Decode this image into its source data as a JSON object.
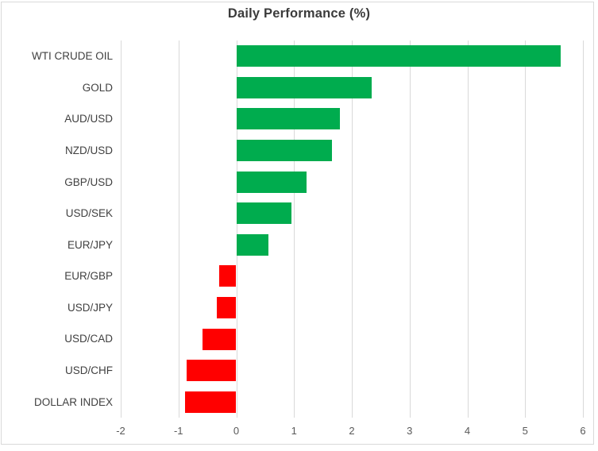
{
  "chart_data": {
    "type": "bar",
    "orientation": "horizontal",
    "title": "Daily Performance (%)",
    "categories": [
      "WTI CRUDE OIL",
      "GOLD",
      "AUD/USD",
      "NZD/USD",
      "GBP/USD",
      "USD/SEK",
      "EUR/JPY",
      "EUR/GBP",
      "USD/JPY",
      "USD/CAD",
      "USD/CHF",
      "DOLLAR INDEX"
    ],
    "values": [
      5.62,
      2.34,
      1.8,
      1.65,
      1.22,
      0.96,
      0.56,
      -0.29,
      -0.33,
      -0.58,
      -0.86,
      -0.88
    ],
    "xlim": [
      -2,
      6
    ],
    "x_ticks": [
      -2,
      -1,
      0,
      1,
      2,
      3,
      4,
      5,
      6
    ],
    "grid": "vertical",
    "legend": false,
    "colors": {
      "positive": "#00AC4E",
      "negative": "#FF0000",
      "gridline": "#D9D9D9",
      "title": "#3B3B3B",
      "category_label": "#404040",
      "tick_label": "#595959",
      "background": "#FFFFFF"
    }
  }
}
